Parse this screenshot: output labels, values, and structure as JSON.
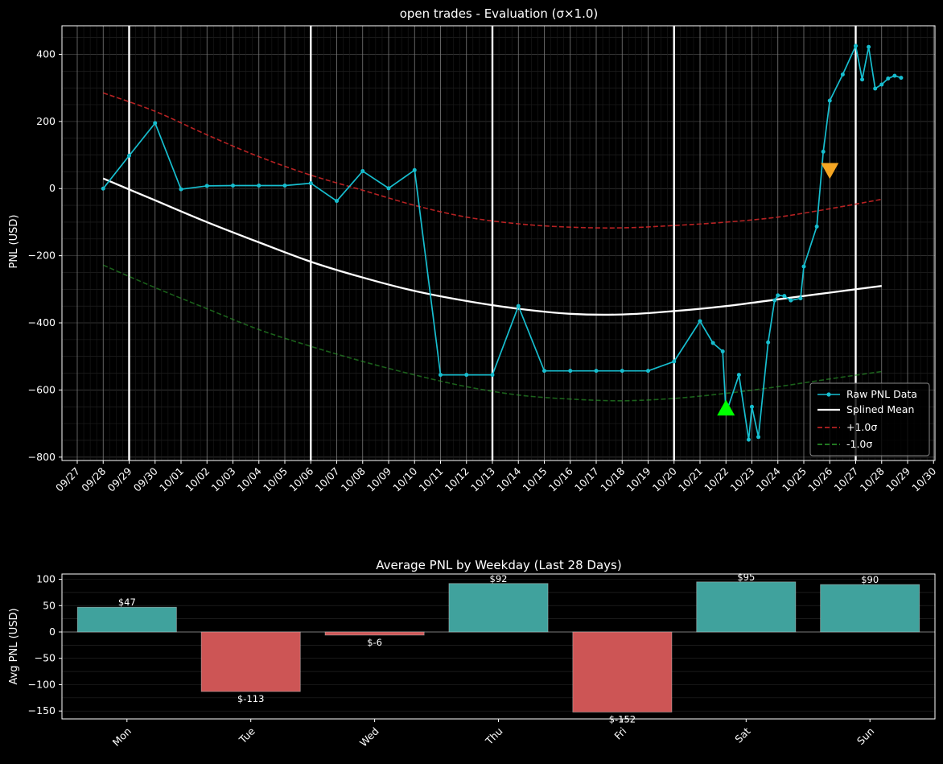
{
  "colors": {
    "background": "#000000",
    "raw": "#17becf",
    "spline": "#ffffff",
    "upper": "#d62728",
    "lower": "#2ca02c",
    "buy_marker": "#00ff00",
    "sell_marker": "#f5a623",
    "bar_positive": "#40a29d",
    "bar_negative": "#cd5555"
  },
  "chart_data": [
    {
      "type": "line",
      "title": "open trades  - Evaluation (σ×1.0)",
      "ylabel": "PNL (USD)",
      "xlabel": "",
      "ylim": [
        -810,
        485
      ],
      "yticks": [
        400,
        200,
        0,
        -200,
        -400,
        -600,
        -800
      ],
      "x_ticklabels": [
        "09/27",
        "09/28",
        "09/29",
        "09/30",
        "10/01",
        "10/02",
        "10/03",
        "10/04",
        "10/05",
        "10/06",
        "10/07",
        "10/08",
        "10/09",
        "10/10",
        "10/11",
        "10/12",
        "10/13",
        "10/14",
        "10/15",
        "10/16",
        "10/17",
        "10/18",
        "10/19",
        "10/20",
        "10/21",
        "10/22",
        "10/23",
        "10/24",
        "10/25",
        "10/26",
        "10/27",
        "10/28",
        "10/29",
        "10/30"
      ],
      "week_boundaries": [
        "09/29",
        "10/06",
        "10/13",
        "10/20",
        "10/27"
      ],
      "grid": true,
      "legend": {
        "placement": "lower-right",
        "entries": [
          "Raw PNL Data",
          "Splined Mean",
          "+1.0σ",
          "-1.0σ"
        ]
      },
      "raw_pnl": {
        "x": [
          "09/28",
          "09/29",
          "09/30",
          "10/01",
          "10/02",
          "10/03",
          "10/04",
          "10/05",
          "10/06",
          "10/07",
          "10/08",
          "10/09",
          "10/10",
          "10/11",
          "10/12",
          "10/13",
          "10/14",
          "10/15",
          "10/16",
          "10/17",
          "10/18",
          "10/19",
          "10/20",
          "10/21",
          "10/21 12h",
          "10/21 21h",
          "10/22",
          "10/22 12h",
          "10/22 21h",
          "10/23",
          "10/23 6h",
          "10/23 15h",
          "10/23 21h",
          "10/24",
          "10/24 6h",
          "10/24 12h",
          "10/24 21h",
          "10/25",
          "10/25 12h",
          "10/25 18h",
          "10/26",
          "10/26 12h",
          "10/27",
          "10/27 6h",
          "10/27 12h",
          "10/27 18h",
          "10/28",
          "10/28 6h",
          "10/28 12h",
          "10/28 18h"
        ],
        "y": [
          0,
          98,
          195,
          -2,
          8,
          9,
          9,
          9,
          16,
          -37,
          52,
          1,
          55,
          -555,
          -555,
          -555,
          -350,
          -543,
          -543,
          -543,
          -543,
          -543,
          -515,
          -395,
          -460,
          -485,
          -670,
          -555,
          -748,
          -650,
          -740,
          -458,
          -333,
          -318,
          -320,
          -333,
          -327,
          -232,
          -113,
          110,
          262,
          340,
          425,
          325,
          422,
          298,
          310,
          328,
          336,
          330
        ]
      },
      "spline_mean": {
        "x": [
          "09/28",
          "09/30",
          "10/02",
          "10/04",
          "10/06",
          "10/08",
          "10/10",
          "10/12",
          "10/14",
          "10/16",
          "10/18",
          "10/20",
          "10/22",
          "10/24",
          "10/26",
          "10/28"
        ],
        "y": [
          30,
          -35,
          -100,
          -160,
          -218,
          -265,
          -305,
          -335,
          -358,
          -373,
          -375,
          -365,
          -350,
          -330,
          -310,
          -290
        ]
      },
      "plus_sigma": {
        "x": [
          "09/28",
          "09/30",
          "10/02",
          "10/04",
          "10/06",
          "10/08",
          "10/10",
          "10/12",
          "10/14",
          "10/16",
          "10/18",
          "10/20",
          "10/22",
          "10/24",
          "10/26",
          "10/28"
        ],
        "y": [
          285,
          230,
          160,
          95,
          40,
          -5,
          -50,
          -85,
          -105,
          -115,
          -117,
          -110,
          -100,
          -85,
          -60,
          -32
        ]
      },
      "minus_sigma": {
        "x": [
          "09/28",
          "09/30",
          "10/02",
          "10/04",
          "10/06",
          "10/08",
          "10/10",
          "10/12",
          "10/14",
          "10/16",
          "10/18",
          "10/20",
          "10/22",
          "10/24",
          "10/26",
          "10/28"
        ],
        "y": [
          -228,
          -295,
          -358,
          -420,
          -470,
          -515,
          -555,
          -590,
          -615,
          -627,
          -632,
          -625,
          -610,
          -590,
          -567,
          -545
        ]
      },
      "markers": [
        {
          "kind": "buy",
          "shape": "triangle-up",
          "x": "10/22",
          "y": -655
        },
        {
          "kind": "sell",
          "shape": "triangle-down",
          "x": "10/26",
          "y": 55
        }
      ]
    },
    {
      "type": "bar",
      "title": "Average PNL by Weekday (Last 28 Days)",
      "ylabel": "Avg PNL (USD)",
      "xlabel": "",
      "categories": [
        "Mon",
        "Tue",
        "Wed",
        "Thu",
        "Fri",
        "Sat",
        "Sun"
      ],
      "values": [
        47,
        -113,
        -6,
        92,
        -152,
        95,
        90
      ],
      "value_labels": [
        "$47",
        "$-113",
        "$-6",
        "$92",
        "$-152",
        "$95",
        "$90"
      ],
      "ylim": [
        -165,
        110
      ],
      "yticks": [
        100,
        50,
        0,
        -50,
        -100,
        -150
      ],
      "grid": true
    }
  ]
}
